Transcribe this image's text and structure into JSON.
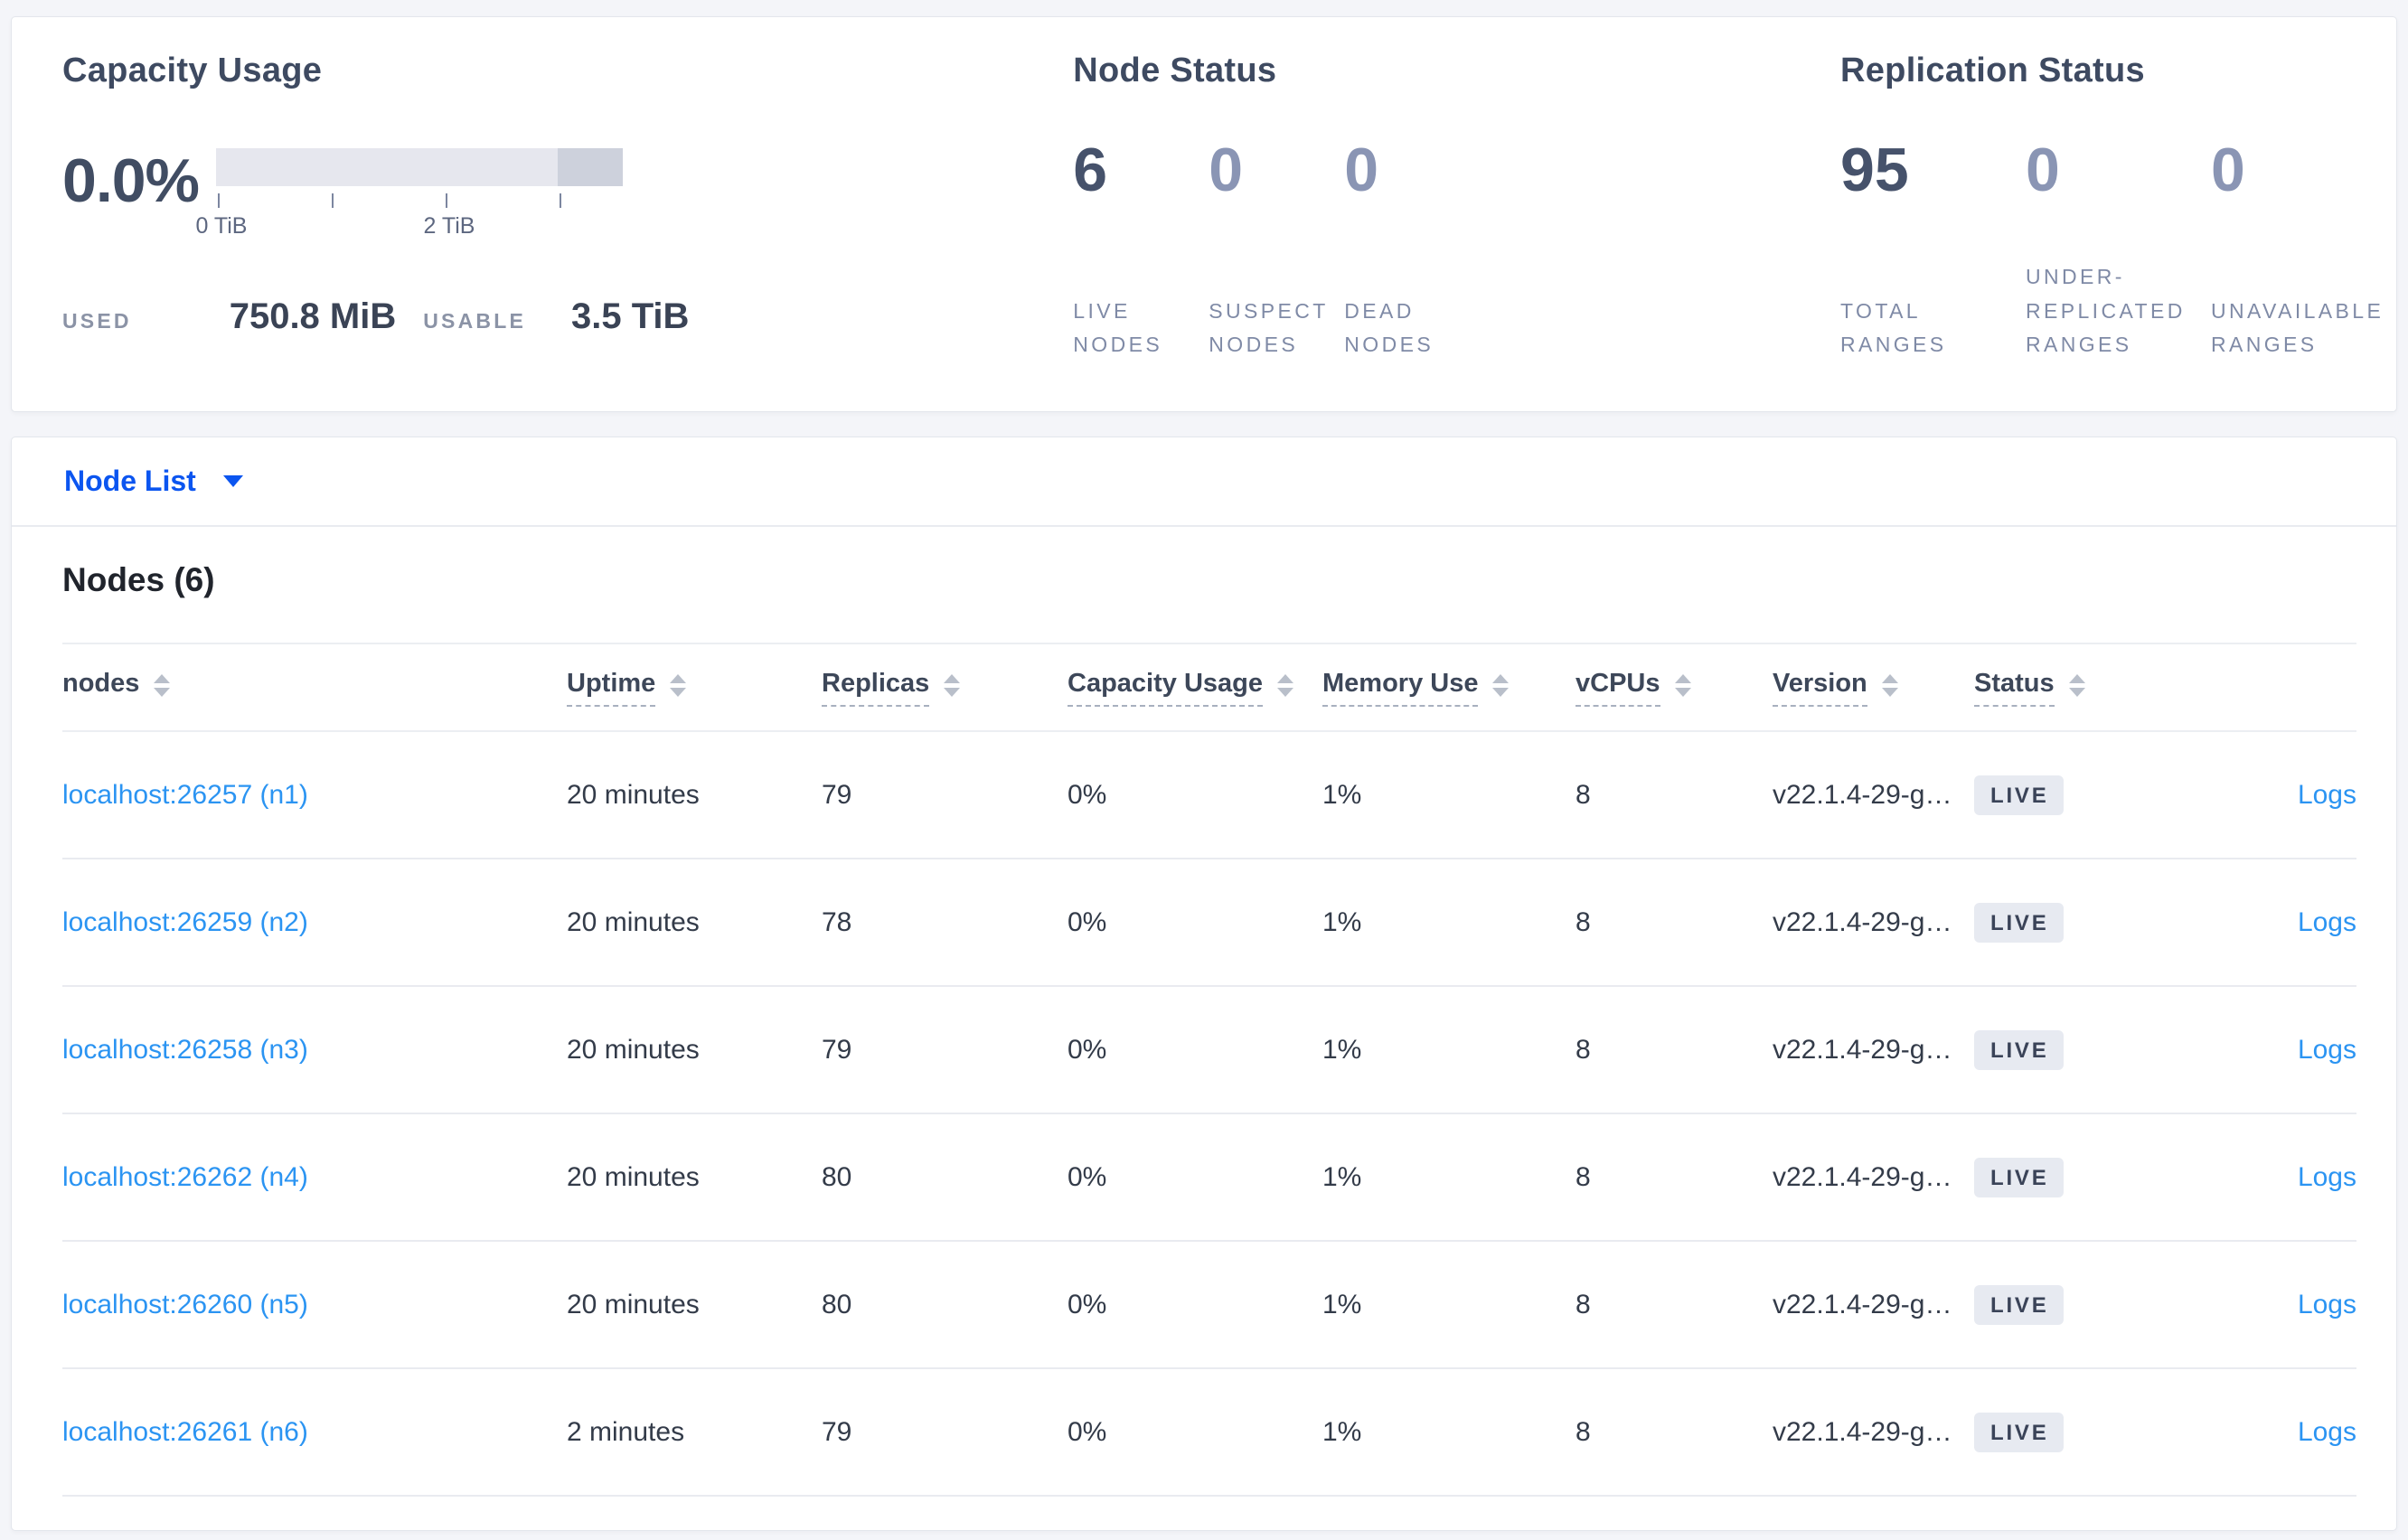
{
  "summary": {
    "capacity": {
      "title": "Capacity Usage",
      "percent": "0.0%",
      "axis_ticks": [
        "0 TiB",
        "2 TiB"
      ],
      "used_label": "USED",
      "used_value": "750.8 MiB",
      "usable_label": "USABLE",
      "usable_value": "3.5 TiB"
    },
    "node_status": {
      "title": "Node Status",
      "stats": [
        {
          "value": "6",
          "label": "LIVE NODES",
          "emphasis": true
        },
        {
          "value": "0",
          "label": "SUSPECT NODES",
          "emphasis": false
        },
        {
          "value": "0",
          "label": "DEAD NODES",
          "emphasis": false
        }
      ]
    },
    "replication": {
      "title": "Replication Status",
      "stats": [
        {
          "value": "95",
          "label": "TOTAL RANGES",
          "emphasis": true
        },
        {
          "value": "0",
          "label": "UNDER-REPLICATED RANGES",
          "emphasis": false
        },
        {
          "value": "0",
          "label": "UNAVAILABLE RANGES",
          "emphasis": false
        }
      ]
    }
  },
  "node_list": {
    "selector_label": "Node List",
    "table_title": "Nodes (6)",
    "columns": [
      {
        "label": "nodes",
        "underlined": false
      },
      {
        "label": "Uptime",
        "underlined": true
      },
      {
        "label": "Replicas",
        "underlined": true
      },
      {
        "label": "Capacity Usage",
        "underlined": true
      },
      {
        "label": "Memory Use",
        "underlined": true
      },
      {
        "label": "vCPUs",
        "underlined": true
      },
      {
        "label": "Version",
        "underlined": true
      },
      {
        "label": "Status",
        "underlined": true
      }
    ],
    "rows": [
      {
        "node": "localhost:26257 (n1)",
        "uptime": "20 minutes",
        "replicas": "79",
        "capacity": "0%",
        "memory": "1%",
        "vcpus": "8",
        "version": "v22.1.4-29-g…",
        "status": "LIVE",
        "logs": "Logs"
      },
      {
        "node": "localhost:26259 (n2)",
        "uptime": "20 minutes",
        "replicas": "78",
        "capacity": "0%",
        "memory": "1%",
        "vcpus": "8",
        "version": "v22.1.4-29-g…",
        "status": "LIVE",
        "logs": "Logs"
      },
      {
        "node": "localhost:26258 (n3)",
        "uptime": "20 minutes",
        "replicas": "79",
        "capacity": "0%",
        "memory": "1%",
        "vcpus": "8",
        "version": "v22.1.4-29-g…",
        "status": "LIVE",
        "logs": "Logs"
      },
      {
        "node": "localhost:26262 (n4)",
        "uptime": "20 minutes",
        "replicas": "80",
        "capacity": "0%",
        "memory": "1%",
        "vcpus": "8",
        "version": "v22.1.4-29-g…",
        "status": "LIVE",
        "logs": "Logs"
      },
      {
        "node": "localhost:26260 (n5)",
        "uptime": "20 minutes",
        "replicas": "80",
        "capacity": "0%",
        "memory": "1%",
        "vcpus": "8",
        "version": "v22.1.4-29-g…",
        "status": "LIVE",
        "logs": "Logs"
      },
      {
        "node": "localhost:26261 (n6)",
        "uptime": "2 minutes",
        "replicas": "79",
        "capacity": "0%",
        "memory": "1%",
        "vcpus": "8",
        "version": "v22.1.4-29-g…",
        "status": "LIVE",
        "logs": "Logs"
      }
    ]
  },
  "colors": {
    "page_background": "#f4f5f9",
    "card_background": "#ffffff",
    "card_border": "#e3e6ec",
    "title_text": "#3e4a61",
    "stat_emphasis": "#46526b",
    "stat_muted": "#8a95b4",
    "stat_label": "#7f8aa6",
    "gauge_bar_light": "#e6e7ee",
    "gauge_bar_dark": "#cdd1dc",
    "link_blue": "#2b94f2",
    "dropdown_blue": "#0b55f0",
    "badge_background": "#e7eaf1",
    "badge_text": "#3a4358",
    "row_divider": "#e9ebf0"
  }
}
